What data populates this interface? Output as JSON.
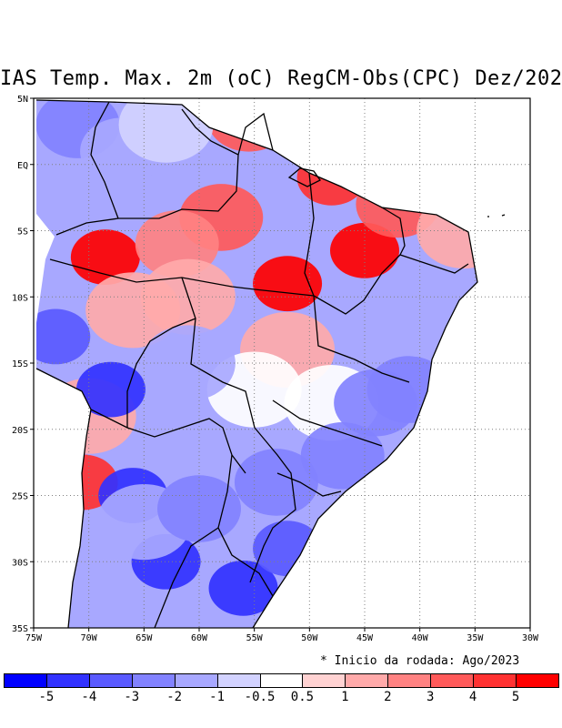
{
  "title": "IAS Temp. Max. 2m (oC) RegCM-Obs(CPC) Dez/2023",
  "note": "* Inicio da rodada: Ago/2023",
  "axes": {
    "lon_labels": [
      "75W",
      "70W",
      "65W",
      "60W",
      "55W",
      "50W",
      "45W",
      "40W",
      "35W",
      "30W"
    ],
    "lon_values": [
      -75,
      -70,
      -65,
      -60,
      -55,
      -50,
      -45,
      -40,
      -35,
      -30
    ],
    "lat_labels": [
      "5N",
      "EQ",
      "5S",
      "10S",
      "15S",
      "20S",
      "25S",
      "30S",
      "35S"
    ],
    "lat_values": [
      5,
      0,
      -5,
      -10,
      -15,
      -20,
      -25,
      -30,
      -35
    ],
    "lon_range": [
      -75,
      -30
    ],
    "lat_range": [
      -35,
      5
    ]
  },
  "colorbar": {
    "colors": [
      "#0000ff",
      "#3232ff",
      "#5a5aff",
      "#8282ff",
      "#a8a8ff",
      "#d2d2ff",
      "#ffffff",
      "#ffd2d2",
      "#ffaaaa",
      "#ff8282",
      "#ff5a5a",
      "#ff3232",
      "#ff0000"
    ],
    "labels": [
      "-5",
      "-4",
      "-3",
      "-2",
      "-1",
      "-0.5",
      "0.5",
      "1",
      "2",
      "3",
      "4",
      "5"
    ]
  },
  "fields": [
    {
      "lon": -68.5,
      "lat": -7,
      "v": 5
    },
    {
      "lon": -52,
      "lat": -9,
      "v": 5
    },
    {
      "lon": -45,
      "lat": -6.5,
      "v": 5
    },
    {
      "lon": -48,
      "lat": -1,
      "v": 4
    },
    {
      "lon": -55.5,
      "lat": 3.5,
      "v": 3
    },
    {
      "lon": -58,
      "lat": -4,
      "v": 3
    },
    {
      "lon": -62,
      "lat": -6,
      "v": 2
    },
    {
      "lon": -61,
      "lat": -10,
      "v": 1.5
    },
    {
      "lon": -66,
      "lat": -11,
      "v": 1
    },
    {
      "lon": -42,
      "lat": -3,
      "v": 3
    },
    {
      "lon": -52,
      "lat": -14,
      "v": 1.5
    },
    {
      "lon": -55,
      "lat": -17,
      "v": 0.2
    },
    {
      "lon": -48,
      "lat": -18,
      "v": -0.5
    },
    {
      "lon": -70.5,
      "lat": -24,
      "v": 4
    },
    {
      "lon": -70,
      "lat": -19,
      "v": 1
    },
    {
      "lon": -71,
      "lat": 3,
      "v": -2.5
    },
    {
      "lon": -67,
      "lat": 1,
      "v": -2
    },
    {
      "lon": -63,
      "lat": 3,
      "v": -1
    },
    {
      "lon": -73,
      "lat": -13,
      "v": -4
    },
    {
      "lon": -68,
      "lat": -17,
      "v": -5
    },
    {
      "lon": -66,
      "lat": -25,
      "v": -5
    },
    {
      "lon": -63,
      "lat": -30,
      "v": -5
    },
    {
      "lon": -56,
      "lat": -32,
      "v": -5
    },
    {
      "lon": -52,
      "lat": -29,
      "v": -4
    },
    {
      "lon": -58,
      "lat": -22,
      "v": -2
    },
    {
      "lon": -53,
      "lat": -24,
      "v": -3
    },
    {
      "lon": -47,
      "lat": -22,
      "v": -3
    },
    {
      "lon": -44,
      "lat": -18,
      "v": -2.5
    },
    {
      "lon": -41,
      "lat": -17,
      "v": -3
    },
    {
      "lon": -40,
      "lat": -12,
      "v": -2
    },
    {
      "lon": -37,
      "lat": -8,
      "v": -1.5
    },
    {
      "lon": -61,
      "lat": -15,
      "v": -1.5
    },
    {
      "lon": -65,
      "lat": -27,
      "v": -1.5
    },
    {
      "lon": -60,
      "lat": -26,
      "v": -3
    },
    {
      "lon": -36,
      "lat": -5,
      "v": 1
    }
  ]
}
